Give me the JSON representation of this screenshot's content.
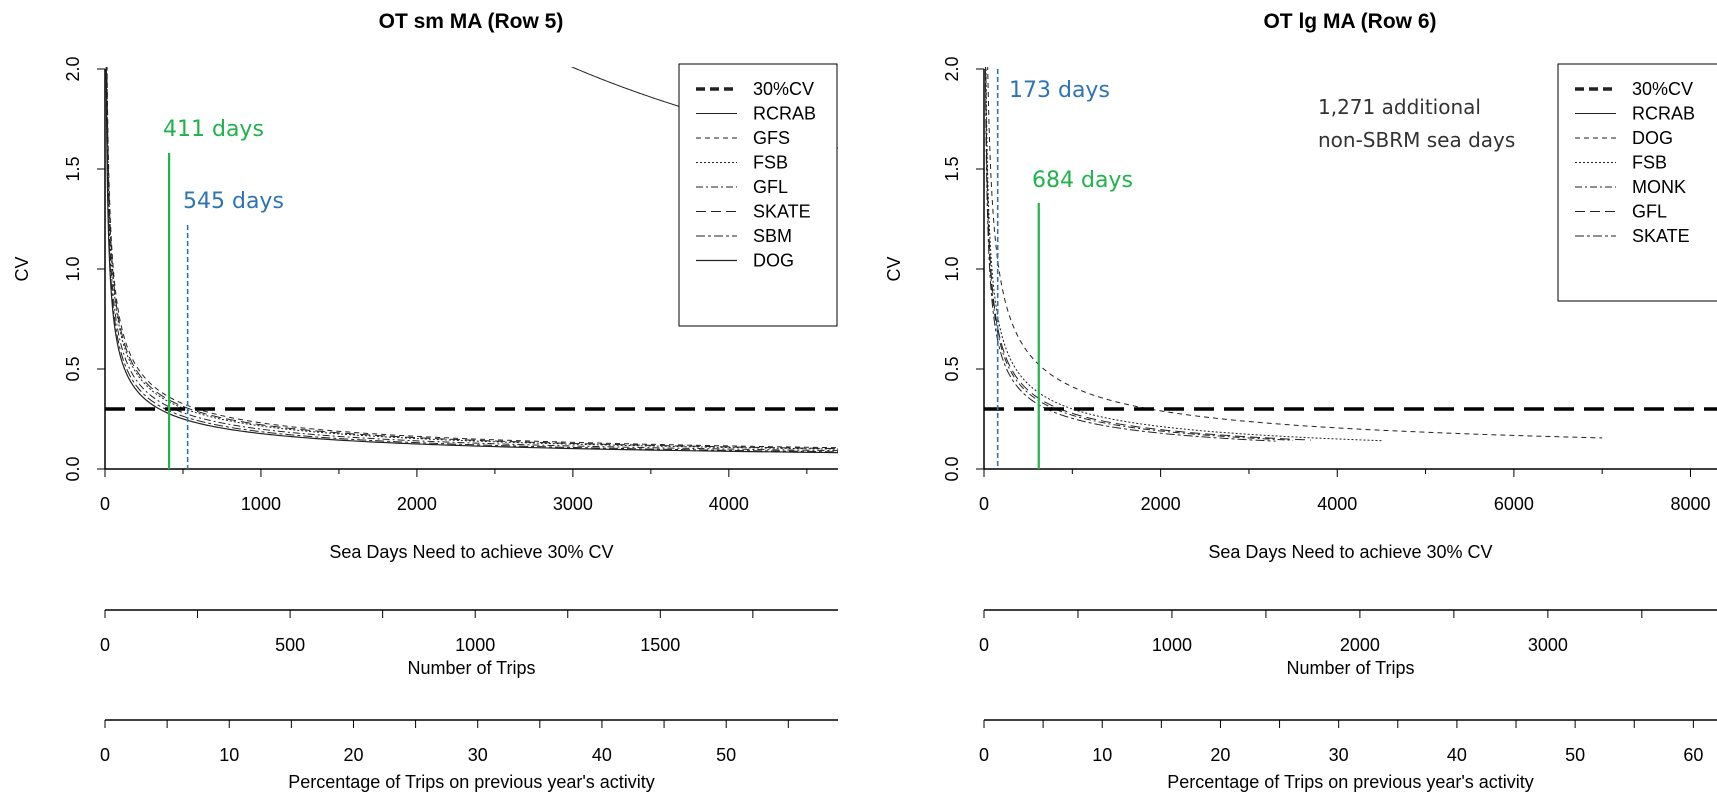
{
  "chart_data": [
    {
      "type": "line",
      "title": "OT sm MA (Row 5)",
      "xlabel": "Sea Days Need to achieve 30% CV",
      "ylabel": "CV",
      "xlim": [
        0,
        4700
      ],
      "ylim": [
        0,
        2.0
      ],
      "x_ticks": [
        "0",
        "1000",
        "2000",
        "3000",
        "4000"
      ],
      "y_ticks": [
        "0.0",
        "0.5",
        "1.0",
        "1.5",
        "2.0"
      ],
      "legend_position": "top-right",
      "target_line": {
        "name": "30%CV",
        "y": 0.3
      },
      "series": [
        {
          "name": "RCRAB",
          "dash": "solid",
          "k": 110,
          "xmax": 4700
        },
        {
          "name": "GFS",
          "dash": "5,4",
          "k": 7.3,
          "xmax": 4700
        },
        {
          "name": "FSB",
          "dash": "2,2",
          "k": 6.8,
          "xmax": 4700
        },
        {
          "name": "GFL",
          "dash": "7,3,2,3",
          "k": 6.3,
          "xmax": 4700
        },
        {
          "name": "SKATE",
          "dash": "10,5",
          "k": 7.0,
          "xmax": 4700
        },
        {
          "name": "SBM",
          "dash": "9,3,3,3",
          "k": 5.9,
          "xmax": 4700
        },
        {
          "name": "DOG",
          "dash": "solid",
          "k": 5.6,
          "xmax": 4700,
          "width": 1.2
        }
      ],
      "annotations": [
        {
          "label": "411 days",
          "x": 411,
          "y_top": 1.58,
          "color": "#1fb34a",
          "style": "solid"
        },
        {
          "label": "545 days",
          "x": 530,
          "y_top": 1.22,
          "color": "#2e74b5",
          "style": "dashed"
        }
      ],
      "secondary_axes": [
        {
          "label": "Number of Trips",
          "max": 1980,
          "ticks": [
            "0",
            "500",
            "1000",
            "1500"
          ],
          "tick_values": [
            0,
            500,
            1000,
            1500
          ],
          "minor_step": 250
        },
        {
          "label": "Percentage of Trips on previous year's activity",
          "max": 59,
          "ticks": [
            "0",
            "10",
            "20",
            "30",
            "40",
            "50"
          ],
          "tick_values": [
            0,
            10,
            20,
            30,
            40,
            50
          ],
          "minor_step": 5
        }
      ]
    },
    {
      "type": "line",
      "title": "OT lg MA (Row 6)",
      "xlabel": "Sea Days Need to achieve 30% CV",
      "ylabel": "CV",
      "xlim": [
        0,
        8300
      ],
      "ylim": [
        0,
        2.0
      ],
      "x_ticks": [
        "0",
        "2000",
        "4000",
        "6000",
        "8000"
      ],
      "y_ticks": [
        "0.0",
        "0.5",
        "1.0",
        "1.5",
        "2.0"
      ],
      "legend_position": "top-right",
      "target_line": {
        "name": "30%CV",
        "y": 0.3
      },
      "note": [
        "1,271 additional",
        "non-SBRM sea days"
      ],
      "series": [
        {
          "name": "RCRAB",
          "dash": "solid",
          "k": 192,
          "xmax": 8300
        },
        {
          "name": "DOG",
          "dash": "5,4",
          "k": 13,
          "xmax": 7000
        },
        {
          "name": "FSB",
          "dash": "2,2",
          "k": 9.5,
          "xmax": 4500
        },
        {
          "name": "MONK",
          "dash": "7,3,2,3",
          "k": 8.5,
          "xmax": 3500
        },
        {
          "name": "GFL",
          "dash": "10,5",
          "k": 8.8,
          "xmax": 3700
        },
        {
          "name": "SKATE",
          "dash": "9,3,3,3",
          "k": 8.0,
          "xmax": 3300
        }
      ],
      "annotations": [
        {
          "label": "173 days",
          "x": 155,
          "y_top": 2.0,
          "color": "#2e74b5",
          "style": "dashed"
        },
        {
          "label": "684 days",
          "x": 620,
          "y_top": 1.33,
          "color": "#1fb34a",
          "style": "solid"
        }
      ],
      "secondary_axes": [
        {
          "label": "Number of Trips",
          "max": 3900,
          "ticks": [
            "0",
            "1000",
            "2000",
            "3000"
          ],
          "tick_values": [
            0,
            1000,
            2000,
            3000
          ],
          "minor_step": 500
        },
        {
          "label": "Percentage of Trips on previous year's activity",
          "max": 62,
          "ticks": [
            "0",
            "10",
            "20",
            "30",
            "40",
            "50",
            "60"
          ],
          "tick_values": [
            0,
            10,
            20,
            30,
            40,
            50,
            60
          ],
          "minor_step": 5
        }
      ]
    }
  ]
}
